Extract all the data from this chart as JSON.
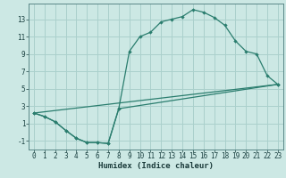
{
  "title": "",
  "xlabel": "Humidex (Indice chaleur)",
  "bg_color": "#cce8e4",
  "grid_color": "#aad0cc",
  "line_color": "#2a7d6e",
  "xlim": [
    -0.5,
    23.5
  ],
  "ylim": [
    -2.0,
    14.8
  ],
  "xticks": [
    0,
    1,
    2,
    3,
    4,
    5,
    6,
    7,
    8,
    9,
    10,
    11,
    12,
    13,
    14,
    15,
    16,
    17,
    18,
    19,
    20,
    21,
    22,
    23
  ],
  "yticks": [
    -1,
    1,
    3,
    5,
    7,
    9,
    11,
    13
  ],
  "curve_upper": [
    [
      0,
      2.2
    ],
    [
      1,
      1.8
    ],
    [
      2,
      1.2
    ],
    [
      3,
      0.2
    ],
    [
      4,
      -0.7
    ],
    [
      5,
      -1.2
    ],
    [
      6,
      -1.2
    ],
    [
      7,
      -1.3
    ],
    [
      8,
      2.7
    ],
    [
      9,
      9.3
    ],
    [
      10,
      11.0
    ],
    [
      11,
      11.5
    ],
    [
      12,
      12.7
    ],
    [
      13,
      13.0
    ],
    [
      14,
      13.3
    ],
    [
      15,
      14.1
    ],
    [
      16,
      13.8
    ],
    [
      17,
      13.2
    ],
    [
      18,
      12.3
    ],
    [
      19,
      10.5
    ],
    [
      20,
      9.3
    ],
    [
      21,
      9.0
    ],
    [
      22,
      6.5
    ],
    [
      23,
      5.5
    ]
  ],
  "curve_lower": [
    [
      0,
      2.2
    ],
    [
      1,
      1.8
    ],
    [
      2,
      1.2
    ],
    [
      3,
      0.2
    ],
    [
      4,
      -0.7
    ],
    [
      5,
      -1.2
    ],
    [
      6,
      -1.2
    ],
    [
      7,
      -1.3
    ],
    [
      8,
      2.7
    ],
    [
      23,
      5.5
    ]
  ],
  "curve_diagonal": [
    [
      0,
      2.2
    ],
    [
      23,
      5.5
    ]
  ],
  "tick_fontsize": 5.5,
  "xlabel_fontsize": 6.5
}
